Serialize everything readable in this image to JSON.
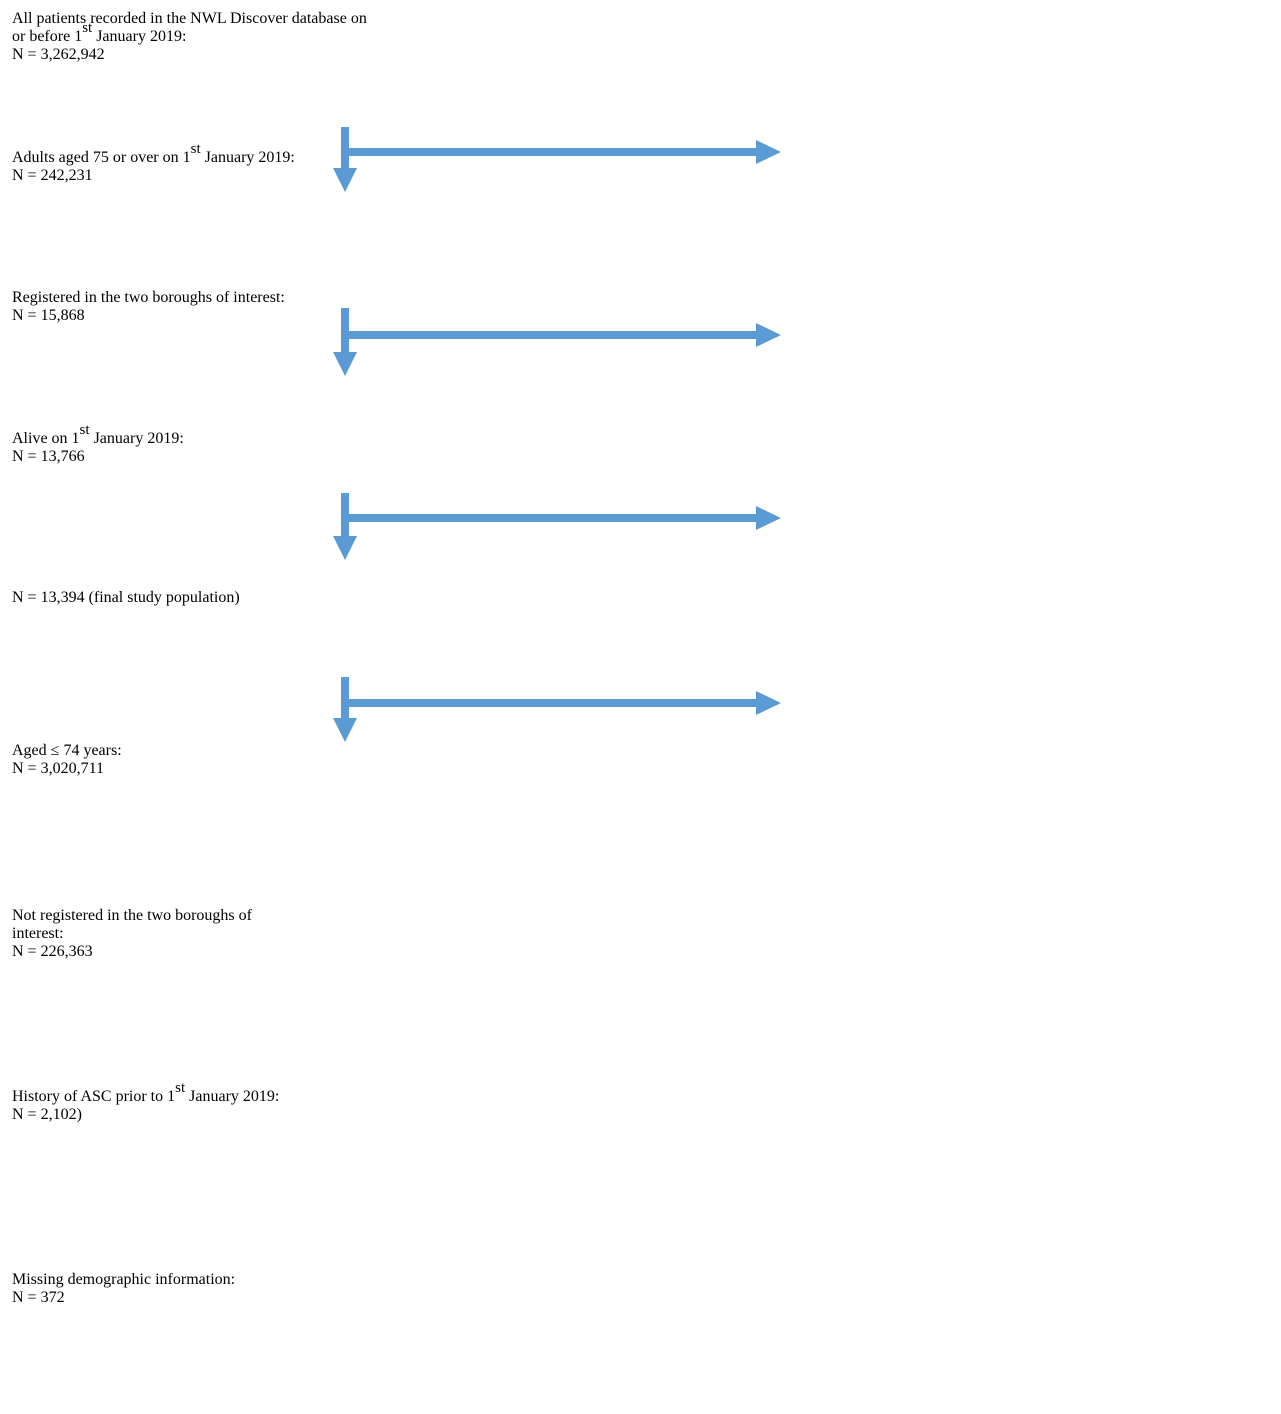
{
  "nodes": [
    {
      "lines": [
        [
          "All patients recorded in the NWL Discover database on"
        ],
        [
          "or before 1",
          {
            "sup": "st"
          },
          " January 2019:"
        ],
        [
          "N = 3,262,942"
        ]
      ]
    },
    {
      "lines": [
        [
          "Adults aged 75 or over on 1",
          {
            "sup": "st"
          },
          " January 2019:"
        ],
        [
          "N = 242,231"
        ]
      ]
    },
    {
      "lines": [
        [
          "Registered in the two boroughs of interest:"
        ],
        [
          "N = 15,868"
        ]
      ]
    },
    {
      "lines": [
        [
          "Alive on 1",
          {
            "sup": "st"
          },
          " January 2019:"
        ],
        [
          "N = 13,766"
        ]
      ]
    },
    {
      "lines": [
        [
          "N = 13,394 (final study population)"
        ]
      ]
    }
  ],
  "exclusions": [
    {
      "lines": [
        [
          "Aged ≤ 74 years:"
        ],
        [
          "N = 3,020,711"
        ]
      ]
    },
    {
      "lines": [
        [
          "Not registered in the two boroughs of"
        ],
        [
          "interest:"
        ],
        [
          "N = 226,363"
        ]
      ]
    },
    {
      "lines": [
        [
          "History of ASC prior to 1",
          {
            "sup": "st"
          },
          " January 2019:"
        ],
        [
          "N = 2,102)"
        ]
      ]
    },
    {
      "lines": [
        [
          "Missing demographic information:"
        ],
        [
          "N = 372"
        ]
      ]
    }
  ]
}
